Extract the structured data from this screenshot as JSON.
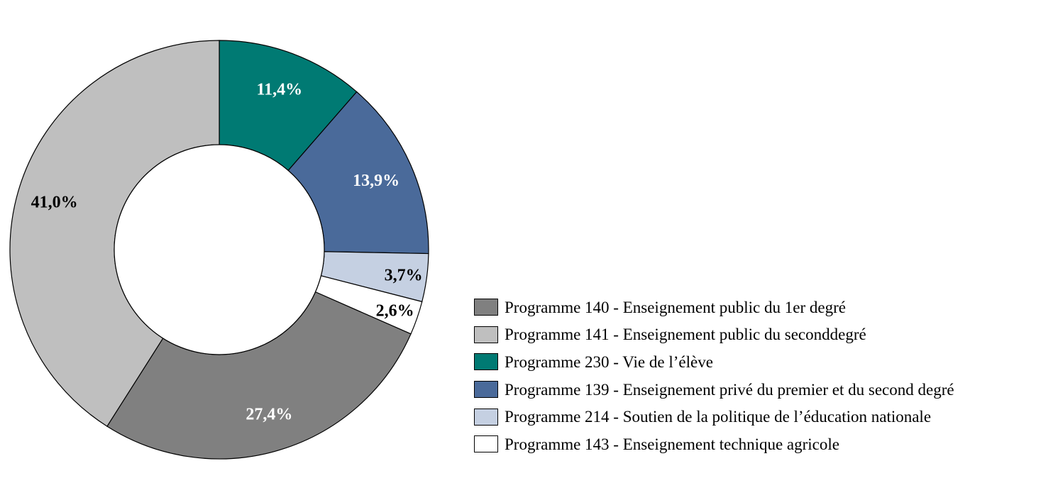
{
  "chart_data": {
    "type": "pie",
    "donut": true,
    "start_angle_deg": 0,
    "direction": "clockwise",
    "legend_position": "right",
    "slices": [
      {
        "label": "Programme 230 - Vie de l’élève",
        "value": 11.4,
        "display": "11,4%",
        "color": "#007A73",
        "label_color": "#ffffff"
      },
      {
        "label": "Programme 139 - Enseignement privé du premier et du second degré",
        "value": 13.9,
        "display": "13,9%",
        "color": "#4A6A9A",
        "label_color": "#ffffff"
      },
      {
        "label": "Programme 214 - Soutien de la politique de l’éducation nationale",
        "value": 3.7,
        "display": "3,7%",
        "color": "#C5D0E2",
        "label_color": "#000000"
      },
      {
        "label": "Programme 143 - Enseignement technique agricole",
        "value": 2.6,
        "display": "2,6%",
        "color": "#FFFFFF",
        "label_color": "#000000"
      },
      {
        "label": "Programme 140 - Enseignement public du 1er degré",
        "value": 27.4,
        "display": "27,4%",
        "color": "#808080",
        "label_color": "#ffffff"
      },
      {
        "label": "Programme 141 - Enseignement public du seconddegré",
        "value": 41.0,
        "display": "41,0%",
        "color": "#BFBFBF",
        "label_color": "#000000"
      }
    ],
    "legend_order": [
      "Programme 140 - Enseignement public du 1er degré",
      "Programme 141 - Enseignement public du seconddegré",
      "Programme 230 - Vie de l’élève",
      "Programme 139 - Enseignement privé du premier et du second degré",
      "Programme 214 - Soutien de la politique de l’éducation nationale",
      "Programme 143 - Enseignement technique agricole"
    ]
  }
}
